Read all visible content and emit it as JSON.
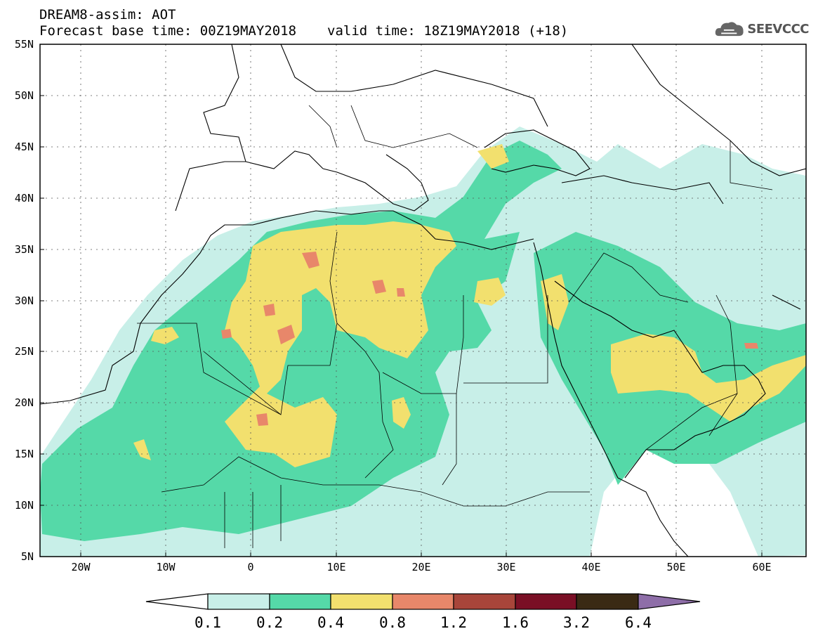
{
  "title": {
    "line1": "DREAM8-assim: AOT",
    "base_time": "Forecast base time: 00Z19MAY2018",
    "valid_time": "valid time: 18Z19MAY2018 (+18)"
  },
  "logo": {
    "text": "SEEVCCC",
    "icon": "cloud-icon"
  },
  "map": {
    "lat_labels": [
      "55N",
      "50N",
      "45N",
      "40N",
      "35N",
      "30N",
      "25N",
      "20N",
      "15N",
      "10N",
      "5N"
    ],
    "lon_labels": [
      "20W",
      "10W",
      "0",
      "10E",
      "20E",
      "30E",
      "40E",
      "50E",
      "60E"
    ],
    "extent": {
      "lon_min": -25,
      "lon_max": 65,
      "lat_min": 5,
      "lat_max": 55
    },
    "gridlines": "dotted"
  },
  "colorbar": {
    "labels": [
      "0.1",
      "0.2",
      "0.4",
      "0.8",
      "1.2",
      "1.6",
      "3.2",
      "6.4"
    ],
    "colors": [
      "#c8efe8",
      "#55d9a8",
      "#f2e06e",
      "#e8876a",
      "#a8453a",
      "#7a0f25",
      "#3a2a14"
    ],
    "under_color": "#ffffff",
    "over_color": "#8e6ea8"
  },
  "colors": {
    "c1": "#c8efe8",
    "c2": "#55d9a8",
    "c3": "#f2e06e",
    "c4": "#e8876a"
  }
}
